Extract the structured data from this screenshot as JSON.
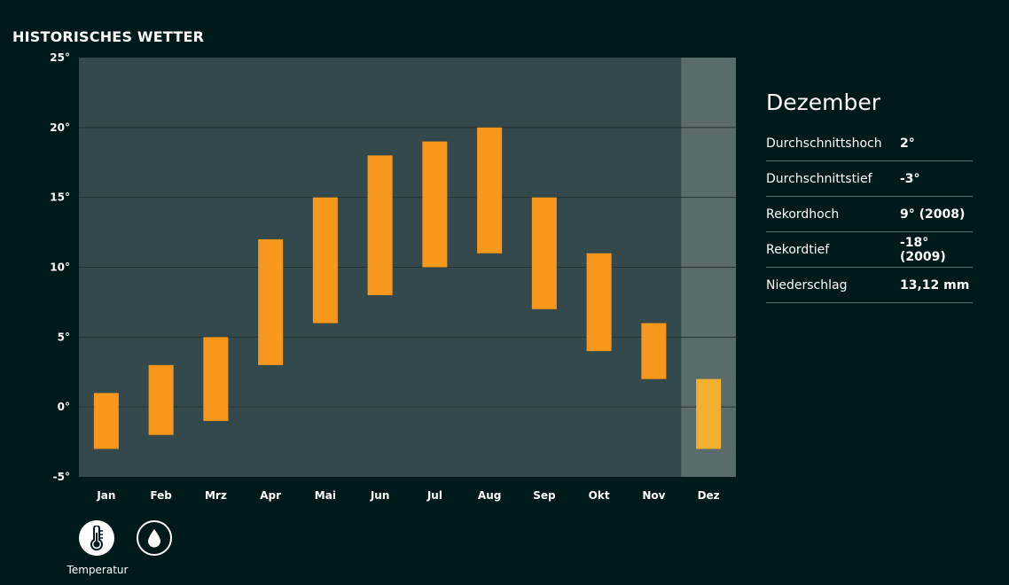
{
  "page": {
    "title": "HISTORISCHES WETTER"
  },
  "chart_data": {
    "type": "bar",
    "subtype": "floating-range",
    "categories": [
      "Jan",
      "Feb",
      "Mrz",
      "Apr",
      "Mai",
      "Jun",
      "Jul",
      "Aug",
      "Sep",
      "Okt",
      "Nov",
      "Dez"
    ],
    "series": [
      {
        "low": [
          -3,
          -2,
          -1,
          3,
          6,
          8,
          10,
          11,
          7,
          4,
          2,
          -3
        ],
        "high": [
          1,
          3,
          5,
          12,
          15,
          18,
          19,
          20,
          15,
          11,
          6,
          2
        ]
      }
    ],
    "yticks": [
      "25°",
      "20°",
      "15°",
      "10°",
      "5°",
      "0°",
      "-5°"
    ],
    "ylim": [
      -5,
      25
    ],
    "selected_index": 11,
    "grid": true,
    "colors": {
      "bar": "#f7981d",
      "bar_selected": "#f2b130",
      "plot_bg": "#34494b",
      "selected_bg": "#5a6b6b",
      "grid": "#243434"
    }
  },
  "details": {
    "month": "Dezember",
    "rows": [
      {
        "label": "Durchschnittshoch",
        "value": "2°"
      },
      {
        "label": "Durchschnittstief",
        "value": "-3°"
      },
      {
        "label": "Rekordhoch",
        "value": "9° (2008)"
      },
      {
        "label": "Rekordtief",
        "value": "-18° (2009)"
      },
      {
        "label": "Niederschlag",
        "value": "13,12 mm"
      }
    ]
  },
  "toggles": {
    "temperature": {
      "icon": "thermometer-icon",
      "caption": "Temperatur",
      "active": true
    },
    "precipitation": {
      "icon": "water-drop-icon",
      "active": false
    }
  }
}
